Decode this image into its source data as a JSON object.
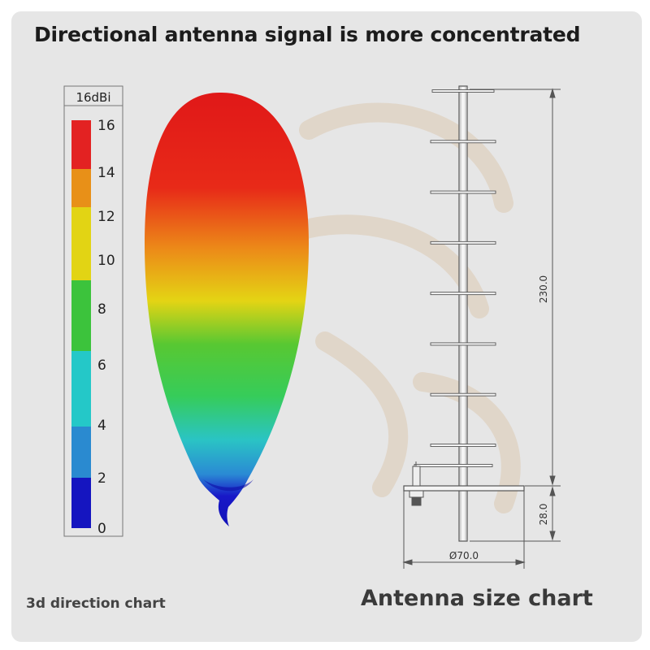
{
  "headline": "Directional antenna signal is more concentrated",
  "scale": {
    "unit_label": "16dBi",
    "ticks": [
      "16",
      "14",
      "12",
      "10",
      "8",
      "6",
      "4",
      "2",
      "0"
    ],
    "colors": [
      "#e32222",
      "#e89018",
      "#e2d414",
      "#3cc33c",
      "#24c8c8",
      "#2a8ad0",
      "#1515c0"
    ]
  },
  "captions": {
    "left": "3d direction chart",
    "right": "Antenna size chart"
  },
  "drawing": {
    "height_dim": "230.0",
    "base_height_dim": "28.0",
    "diameter_dim": "Ø70.0",
    "element_count": 8
  }
}
